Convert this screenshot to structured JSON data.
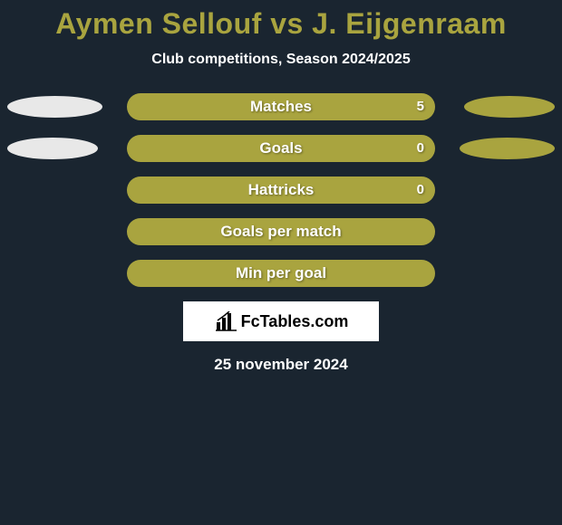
{
  "title": {
    "text": "Aymen Sellouf vs J. Eijgenraam",
    "color": "#a9a43f",
    "fontsize": 32
  },
  "subtitle": {
    "text": "Club competitions, Season 2024/2025",
    "color": "#ffffff",
    "fontsize": 16
  },
  "colors": {
    "background": "#1a2530",
    "bar_bg": "#202f3b",
    "text": "#ffffff"
  },
  "player_left": {
    "color": "#e8e8e8"
  },
  "player_right": {
    "color": "#a9a43f"
  },
  "rows": [
    {
      "label": "Matches",
      "show_markers": true,
      "marker_left_width": 105,
      "marker_right_width": 100,
      "value_right": "5",
      "fill_left_pct": 0,
      "fill_right_pct": 100
    },
    {
      "label": "Goals",
      "show_markers": true,
      "marker_left_width": 100,
      "marker_right_width": 105,
      "value_right": "0",
      "fill_left_pct": 0,
      "fill_right_pct": 100
    },
    {
      "label": "Hattricks",
      "show_markers": false,
      "value_right": "0",
      "fill_left_pct": 0,
      "fill_right_pct": 100
    },
    {
      "label": "Goals per match",
      "show_markers": false,
      "value_right": "",
      "fill_left_pct": 0,
      "fill_right_pct": 100
    },
    {
      "label": "Min per goal",
      "show_markers": false,
      "value_right": "",
      "fill_left_pct": 0,
      "fill_right_pct": 100
    }
  ],
  "logo": {
    "text": "FcTables.com"
  },
  "date": {
    "text": "25 november 2024"
  }
}
